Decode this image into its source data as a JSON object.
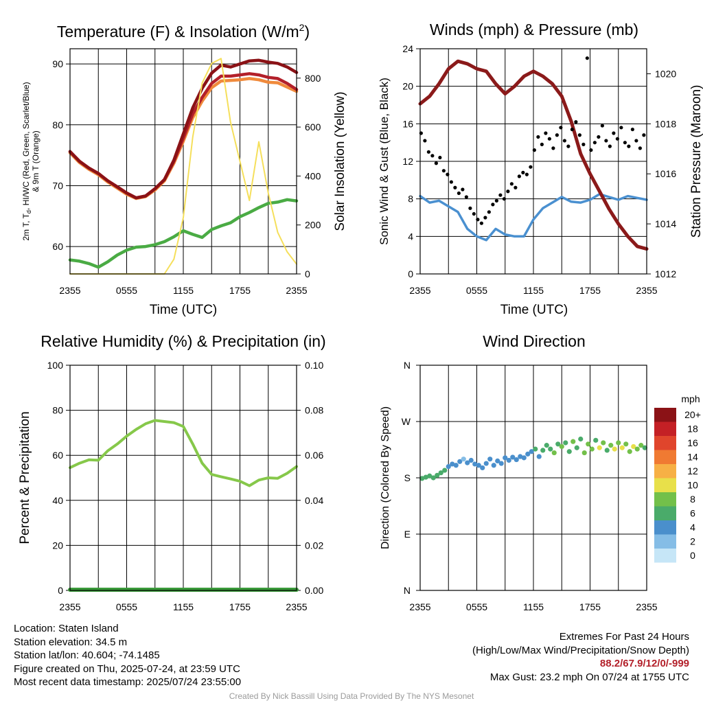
{
  "panels": {
    "temp": {
      "title": "Temperature (F) & Insolation (W/m²)",
      "xlabel": "Time (UTC)",
      "ylabel_left_1": "2m T, Tₑ, HI/WC (Red, Green, Scarlet/Blue)",
      "ylabel_left_2": "& 9m T (Orange)",
      "ylabel_right": "Solar Insolation (Yellow)"
    },
    "winds": {
      "title": "Winds (mph) & Pressure (mb)",
      "xlabel": "Time (UTC)",
      "ylabel_left": "Sonic Wind & Gust (Blue, Black)",
      "ylabel_right": "Station Pressure (Maroon)"
    },
    "rh": {
      "title": "Relative Humidity (%) & Precipitation (in)",
      "ylabel_left": "Percent & Precipitation"
    },
    "wdir": {
      "title": "Wind Direction",
      "ylabel_left": "Direction (Colored By Speed)",
      "legend_title": "mph"
    }
  },
  "x_tick_labels": [
    "2355",
    "0555",
    "1155",
    "1755",
    "2355"
  ],
  "footer": {
    "location": "Location: Staten Island",
    "elevation": "Station elevation: 34.5 m",
    "latlon": "Station lat/lon: 40.604; -74.1485",
    "created": "Figure created on Thu, 2025-07-24, at 23:59 UTC",
    "recent": "Most recent data timestamp: 2025/07/24 23:55:00",
    "extremes_title": "Extremes For Past 24 Hours",
    "extremes_sub": "(High/Low/Max Wind/Precipitation/Snow Depth)",
    "extremes_values": "88.2/67.9/12/0/-999",
    "max_gust": "Max Gust: 23.2 mph On 07/24 at 1755 UTC",
    "credit": "Created By Nick Bassill Using Data Provided By The NYS Mesonet"
  },
  "chart_data": [
    {
      "id": "temp",
      "type": "line",
      "title": "Temperature (F) & Insolation (W/m²)",
      "xlabel": "Time (UTC)",
      "x": [
        0,
        1,
        2,
        3,
        4,
        5,
        6,
        7,
        8,
        9,
        10,
        11,
        12,
        13,
        14,
        15,
        16,
        17,
        18,
        19,
        20,
        21,
        22,
        23,
        24
      ],
      "x_ticks": [
        0,
        6,
        12,
        18,
        24
      ],
      "ylim_left": [
        55.5,
        92.5
      ],
      "yticks_left": [
        60,
        70,
        80,
        90
      ],
      "ylim_right": [
        0,
        920
      ],
      "yticks_right": [
        0,
        200,
        400,
        600,
        800
      ],
      "series": [
        {
          "name": "2m T",
          "axis": "left",
          "color": "#b3202a",
          "values": [
            75.6,
            74.0,
            72.9,
            72.0,
            70.8,
            69.8,
            68.8,
            68.0,
            68.3,
            69.5,
            71.0,
            74.0,
            77.8,
            81.8,
            84.5,
            86.8,
            88.0,
            88.0,
            88.2,
            88.4,
            88.2,
            87.8,
            87.6,
            86.8,
            85.8
          ]
        },
        {
          "name": "9m T",
          "axis": "left",
          "color": "#f08a3c",
          "values": [
            75.4,
            73.8,
            72.7,
            71.8,
            70.6,
            69.6,
            68.6,
            67.9,
            68.2,
            69.3,
            70.8,
            73.7,
            77.3,
            81.2,
            83.9,
            86.1,
            87.2,
            87.3,
            87.4,
            87.6,
            87.4,
            87.0,
            86.9,
            86.2,
            85.5
          ]
        },
        {
          "name": "HI/WC",
          "axis": "left",
          "color": "#8b1216",
          "values": [
            75.6,
            74.0,
            72.9,
            72.0,
            70.8,
            69.8,
            68.8,
            68.0,
            68.3,
            69.5,
            71.0,
            74.2,
            78.5,
            82.8,
            86.0,
            88.5,
            89.8,
            89.5,
            90.0,
            90.5,
            90.6,
            90.3,
            90.1,
            89.5,
            88.6
          ]
        },
        {
          "name": "Td",
          "axis": "left",
          "color": "#4aab44",
          "values": [
            57.8,
            57.6,
            57.2,
            56.6,
            57.5,
            58.6,
            59.4,
            59.9,
            60.0,
            60.3,
            60.8,
            61.6,
            62.6,
            62.0,
            61.5,
            62.8,
            63.4,
            63.9,
            64.9,
            65.6,
            66.4,
            67.1,
            67.3,
            67.7,
            67.5
          ]
        },
        {
          "name": "Solar",
          "axis": "right",
          "color": "#f5df5b",
          "values": [
            0,
            0,
            0,
            0,
            0,
            0,
            0,
            0,
            0,
            0,
            0,
            60,
            230,
            560,
            780,
            860,
            880,
            620,
            460,
            300,
            540,
            330,
            170,
            90,
            40
          ]
        }
      ]
    },
    {
      "id": "winds",
      "type": "line",
      "title": "Winds (mph) & Pressure (mb)",
      "xlabel": "Time (UTC)",
      "x_ticks": [
        0,
        6,
        12,
        18,
        24
      ],
      "ylim_left": [
        0,
        24
      ],
      "yticks_left": [
        0,
        4,
        8,
        12,
        16,
        20,
        24
      ],
      "ylim_right": [
        1012,
        1021
      ],
      "yticks_right": [
        1012,
        1014,
        1016,
        1018,
        1020
      ],
      "series": [
        {
          "name": "Wind",
          "axis": "left",
          "color": "#4a90d0",
          "x": [
            0,
            1,
            2,
            3,
            4,
            5,
            6,
            7,
            8,
            9,
            10,
            11,
            12,
            13,
            14,
            15,
            16,
            17,
            18,
            19,
            20,
            21,
            22,
            23,
            24
          ],
          "values": [
            8.3,
            7.6,
            7.8,
            7.2,
            6.6,
            4.8,
            4.0,
            3.6,
            4.8,
            4.2,
            4.0,
            4.0,
            5.8,
            7.0,
            7.6,
            8.2,
            7.7,
            7.6,
            7.9,
            8.5,
            8.2,
            7.9,
            8.3,
            8.1,
            7.9
          ]
        },
        {
          "name": "Pressure",
          "axis": "right",
          "color": "#8b1a1a",
          "x": [
            0,
            1,
            2,
            3,
            4,
            5,
            6,
            7,
            8,
            9,
            10,
            11,
            12,
            13,
            14,
            15,
            16,
            17,
            18,
            19,
            20,
            21,
            22,
            23,
            24
          ],
          "values": [
            1018.8,
            1019.1,
            1019.6,
            1020.2,
            1020.5,
            1020.4,
            1020.2,
            1020.1,
            1019.6,
            1019.2,
            1019.5,
            1019.9,
            1020.1,
            1019.9,
            1019.6,
            1019.1,
            1018.1,
            1016.8,
            1016.0,
            1015.3,
            1014.6,
            1014.0,
            1013.5,
            1013.1,
            1013.0
          ]
        },
        {
          "name": "Gust",
          "axis": "left",
          "color": "#000000",
          "mode": "points",
          "x": [
            0.1,
            0.5,
            0.9,
            1.3,
            1.7,
            2.1,
            2.5,
            2.9,
            3.3,
            3.7,
            4.1,
            4.5,
            4.9,
            5.3,
            5.7,
            6.1,
            6.5,
            6.9,
            7.3,
            7.7,
            8.1,
            8.5,
            8.9,
            9.3,
            9.7,
            10.1,
            10.5,
            10.9,
            11.3,
            11.7,
            12.1,
            12.5,
            12.9,
            13.3,
            13.7,
            14.1,
            14.5,
            14.9,
            15.3,
            15.7,
            16.1,
            16.5,
            16.9,
            17.3,
            17.7,
            18.1,
            18.5,
            18.9,
            19.3,
            19.7,
            20.1,
            20.5,
            20.9,
            21.3,
            21.7,
            22.1,
            22.5,
            22.9,
            23.3,
            23.7
          ],
          "values": [
            15.0,
            14.2,
            13.0,
            12.6,
            11.8,
            12.4,
            11.0,
            10.6,
            9.8,
            9.2,
            8.6,
            9.0,
            8.2,
            7.0,
            6.4,
            5.8,
            5.4,
            6.0,
            6.6,
            7.4,
            7.8,
            8.4,
            8.0,
            8.8,
            9.6,
            9.2,
            10.4,
            10.8,
            10.6,
            11.4,
            13.2,
            14.6,
            13.8,
            15.0,
            14.4,
            13.4,
            14.8,
            15.6,
            14.2,
            13.6,
            15.4,
            16.2,
            14.8,
            13.8,
            23.0,
            13.2,
            14.0,
            14.6,
            15.8,
            14.2,
            13.6,
            15.0,
            14.4,
            15.6,
            14.0,
            13.6,
            15.4,
            14.2,
            13.4,
            14.8
          ]
        }
      ]
    },
    {
      "id": "rh",
      "type": "line",
      "title": "Relative Humidity (%) & Precipitation (in)",
      "x_ticks": [
        0,
        6,
        12,
        18,
        24
      ],
      "ylim_left": [
        0,
        100
      ],
      "yticks_left": [
        0,
        20,
        40,
        60,
        80,
        100
      ],
      "ylim_right": [
        0,
        0.1
      ],
      "yticks_right": [
        "0.00",
        "0.02",
        "0.04",
        "0.06",
        "0.08",
        "0.10"
      ],
      "series": [
        {
          "name": "RH",
          "axis": "left",
          "color": "#86c84a",
          "x": [
            0,
            1,
            2,
            3,
            4,
            5,
            6,
            7,
            8,
            9,
            10,
            11,
            12,
            13,
            14,
            15,
            16,
            17,
            18,
            19,
            20,
            21,
            22,
            23,
            24
          ],
          "values": [
            54.5,
            56.5,
            58.0,
            57.8,
            62.0,
            65.0,
            68.5,
            71.5,
            74.0,
            75.5,
            75.0,
            74.5,
            72.8,
            65.0,
            56.5,
            51.5,
            50.5,
            49.5,
            48.5,
            46.5,
            49.0,
            50.0,
            49.8,
            52.0,
            55.0
          ]
        },
        {
          "name": "Precipitation",
          "axis": "right",
          "color": "#3a9a3a",
          "x": [
            0,
            24
          ],
          "values": [
            0,
            0
          ]
        }
      ]
    },
    {
      "id": "wdir",
      "type": "scatter",
      "title": "Wind Direction",
      "x_ticks": [
        0,
        6,
        12,
        18,
        24
      ],
      "ylim": [
        0,
        360
      ],
      "yticks": [
        "N",
        "E",
        "S",
        "W",
        "N"
      ],
      "legend": {
        "title": "mph",
        "levels": [
          "0",
          "2",
          "4",
          "6",
          "8",
          "10",
          "12",
          "14",
          "16",
          "18",
          "20+"
        ],
        "colors": [
          "#c6e6f7",
          "#85bde6",
          "#4a8fcc",
          "#4aab6a",
          "#73c04a",
          "#e8e04a",
          "#f7b045",
          "#f07a32",
          "#e0452c",
          "#c42025",
          "#8b1216"
        ]
      },
      "points": [
        {
          "x": 0.2,
          "dir": 179,
          "spd": 6
        },
        {
          "x": 0.6,
          "dir": 181,
          "spd": 6
        },
        {
          "x": 1.0,
          "dir": 183,
          "spd": 7
        },
        {
          "x": 1.4,
          "dir": 180,
          "spd": 6
        },
        {
          "x": 1.8,
          "dir": 184,
          "spd": 7
        },
        {
          "x": 2.2,
          "dir": 188,
          "spd": 7
        },
        {
          "x": 2.6,
          "dir": 192,
          "spd": 6
        },
        {
          "x": 3.0,
          "dir": 198,
          "spd": 5
        },
        {
          "x": 3.4,
          "dir": 202,
          "spd": 4
        },
        {
          "x": 3.8,
          "dir": 200,
          "spd": 4
        },
        {
          "x": 4.2,
          "dir": 206,
          "spd": 4
        },
        {
          "x": 4.6,
          "dir": 210,
          "spd": 3
        },
        {
          "x": 5.0,
          "dir": 204,
          "spd": 4
        },
        {
          "x": 5.4,
          "dir": 208,
          "spd": 4
        },
        {
          "x": 5.8,
          "dir": 202,
          "spd": 5
        },
        {
          "x": 6.2,
          "dir": 200,
          "spd": 4
        },
        {
          "x": 6.6,
          "dir": 196,
          "spd": 4
        },
        {
          "x": 7.0,
          "dir": 203,
          "spd": 5
        },
        {
          "x": 7.4,
          "dir": 210,
          "spd": 4
        },
        {
          "x": 7.8,
          "dir": 200,
          "spd": 4
        },
        {
          "x": 8.2,
          "dir": 207,
          "spd": 4
        },
        {
          "x": 8.6,
          "dir": 203,
          "spd": 4
        },
        {
          "x": 9.0,
          "dir": 212,
          "spd": 5
        },
        {
          "x": 9.4,
          "dir": 208,
          "spd": 4
        },
        {
          "x": 9.8,
          "dir": 213,
          "spd": 5
        },
        {
          "x": 10.2,
          "dir": 209,
          "spd": 4
        },
        {
          "x": 10.6,
          "dir": 214,
          "spd": 4
        },
        {
          "x": 11.0,
          "dir": 212,
          "spd": 5
        },
        {
          "x": 11.4,
          "dir": 218,
          "spd": 5
        },
        {
          "x": 11.8,
          "dir": 222,
          "spd": 4
        },
        {
          "x": 12.2,
          "dir": 226,
          "spd": 6
        },
        {
          "x": 12.6,
          "dir": 214,
          "spd": 5
        },
        {
          "x": 13.0,
          "dir": 224,
          "spd": 7
        },
        {
          "x": 13.4,
          "dir": 232,
          "spd": 6
        },
        {
          "x": 13.8,
          "dir": 226,
          "spd": 7
        },
        {
          "x": 14.2,
          "dir": 220,
          "spd": 8
        },
        {
          "x": 14.6,
          "dir": 234,
          "spd": 7
        },
        {
          "x": 15.0,
          "dir": 230,
          "spd": 9
        },
        {
          "x": 15.4,
          "dir": 236,
          "spd": 6
        },
        {
          "x": 15.8,
          "dir": 222,
          "spd": 7
        },
        {
          "x": 16.2,
          "dir": 238,
          "spd": 8
        },
        {
          "x": 16.6,
          "dir": 228,
          "spd": 7
        },
        {
          "x": 17.0,
          "dir": 242,
          "spd": 6
        },
        {
          "x": 17.4,
          "dir": 220,
          "spd": 8
        },
        {
          "x": 17.8,
          "dir": 234,
          "spd": 9
        },
        {
          "x": 18.2,
          "dir": 226,
          "spd": 8
        },
        {
          "x": 18.6,
          "dir": 240,
          "spd": 7
        },
        {
          "x": 19.0,
          "dir": 228,
          "spd": 10
        },
        {
          "x": 19.4,
          "dir": 236,
          "spd": 8
        },
        {
          "x": 19.8,
          "dir": 224,
          "spd": 7
        },
        {
          "x": 20.2,
          "dir": 232,
          "spd": 9
        },
        {
          "x": 20.6,
          "dir": 226,
          "spd": 10
        },
        {
          "x": 21.0,
          "dir": 236,
          "spd": 8
        },
        {
          "x": 21.4,
          "dir": 228,
          "spd": 11
        },
        {
          "x": 21.8,
          "dir": 234,
          "spd": 9
        },
        {
          "x": 22.2,
          "dir": 222,
          "spd": 8
        },
        {
          "x": 22.6,
          "dir": 230,
          "spd": 10
        },
        {
          "x": 23.0,
          "dir": 226,
          "spd": 9
        },
        {
          "x": 23.4,
          "dir": 232,
          "spd": 8
        },
        {
          "x": 23.8,
          "dir": 228,
          "spd": 7
        }
      ]
    }
  ]
}
